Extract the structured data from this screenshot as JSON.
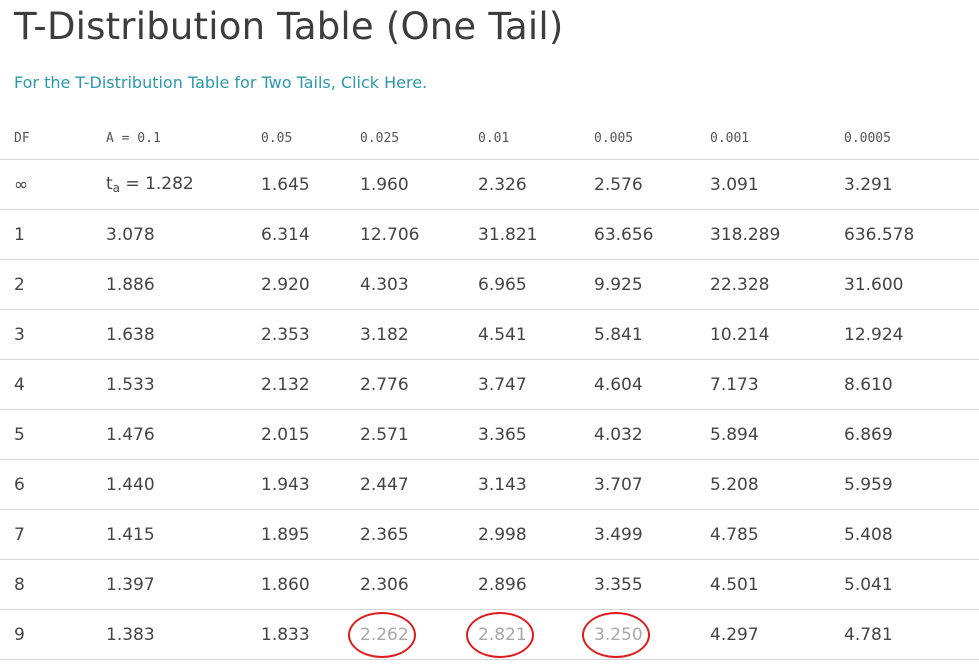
{
  "page": {
    "title": "T-Distribution Table (One Tail)",
    "two_tail_link": "For the T-Distribution Table for Two Tails, Click Here."
  },
  "table": {
    "headers": [
      "DF",
      "A = 0.1",
      "0.05",
      "0.025",
      "0.01",
      "0.005",
      "0.001",
      "0.0005"
    ],
    "infinity_row": {
      "df": "∞",
      "t_symbol": "t",
      "t_subscript": "a",
      "t_value_text": " = 1.282",
      "values": [
        "1.645",
        "1.960",
        "2.326",
        "2.576",
        "3.091",
        "3.291"
      ]
    },
    "rows": [
      {
        "df": "1",
        "values": [
          "3.078",
          "6.314",
          "12.706",
          "31.821",
          "63.656",
          "318.289",
          "636.578"
        ]
      },
      {
        "df": "2",
        "values": [
          "1.886",
          "2.920",
          "4.303",
          "6.965",
          "9.925",
          "22.328",
          "31.600"
        ]
      },
      {
        "df": "3",
        "values": [
          "1.638",
          "2.353",
          "3.182",
          "4.541",
          "5.841",
          "10.214",
          "12.924"
        ]
      },
      {
        "df": "4",
        "values": [
          "1.533",
          "2.132",
          "2.776",
          "3.747",
          "4.604",
          "7.173",
          "8.610"
        ]
      },
      {
        "df": "5",
        "values": [
          "1.476",
          "2.015",
          "2.571",
          "3.365",
          "4.032",
          "5.894",
          "6.869"
        ]
      },
      {
        "df": "6",
        "values": [
          "1.440",
          "1.943",
          "2.447",
          "3.143",
          "3.707",
          "5.208",
          "5.959"
        ]
      },
      {
        "df": "7",
        "values": [
          "1.415",
          "1.895",
          "2.365",
          "2.998",
          "3.499",
          "4.785",
          "5.408"
        ]
      },
      {
        "df": "8",
        "values": [
          "1.397",
          "1.860",
          "2.306",
          "2.896",
          "3.355",
          "4.501",
          "5.041"
        ]
      },
      {
        "df": "9",
        "values": [
          "1.383",
          "1.833",
          "2.262",
          "2.821",
          "3.250",
          "4.297",
          "4.781"
        ]
      }
    ],
    "highlighted_cells": [
      {
        "row": 9,
        "column": "0.025"
      },
      {
        "row": 9,
        "column": "0.01"
      },
      {
        "row": 9,
        "column": "0.005"
      }
    ]
  },
  "colors": {
    "link": "#2a98ad",
    "title": "#3d3d3d",
    "text": "#444444",
    "rule": "#d5d5d5",
    "highlight_circle": "#dd1e1e",
    "highlighted_text": "#a8a8a8"
  }
}
